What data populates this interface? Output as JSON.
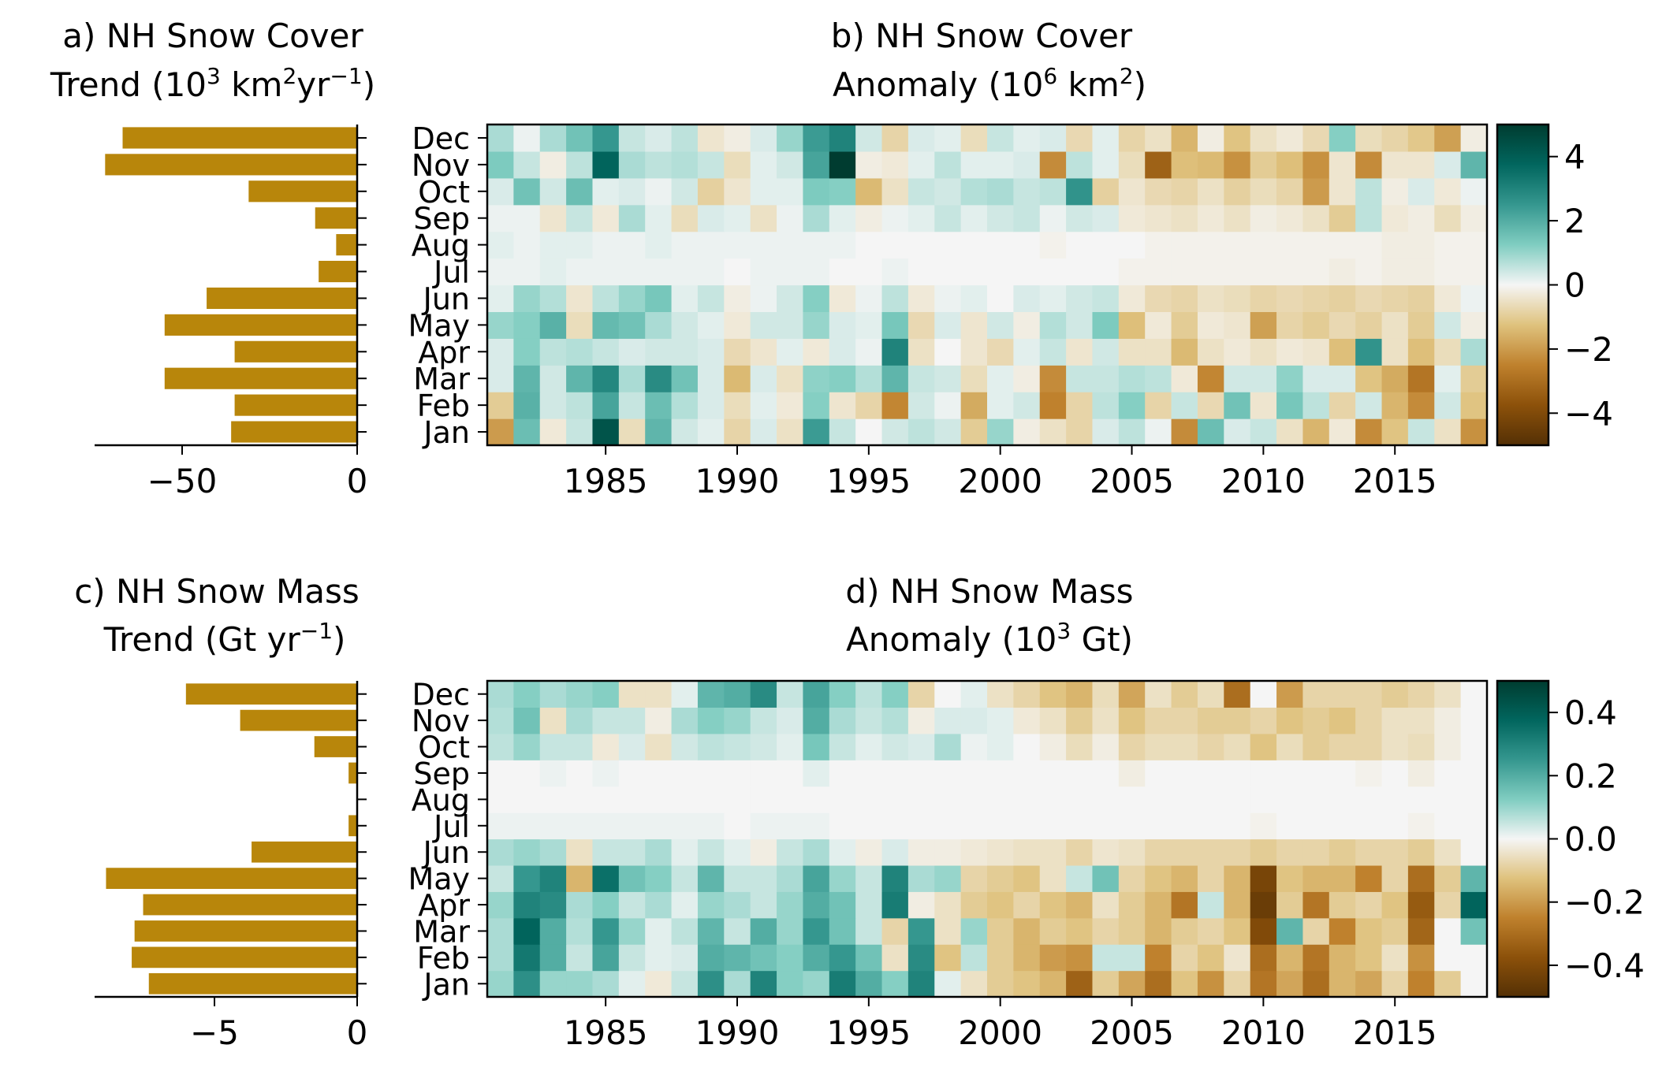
{
  "figure": {
    "panels": [
      {
        "id": "a",
        "title_line1": "a) NH Snow Cover",
        "title_line2": "Trend (10",
        "title_sup1": "3",
        "title_mid": " km",
        "title_sup2": "2",
        "title_mid2": "yr",
        "title_sup3": "−1",
        "title_end": ")"
      },
      {
        "id": "b",
        "title_line1": "b) NH Snow Cover",
        "title_line2": "Anomaly (10",
        "title_sup1": "6",
        "title_mid": " km",
        "title_sup2": "2",
        "title_end": ")"
      },
      {
        "id": "c",
        "title_line1": "c) NH Snow Mass",
        "title_line2": "Trend (Gt yr",
        "title_sup1": "−1",
        "title_end": ")"
      },
      {
        "id": "d",
        "title_line1": "d) NH Snow Mass",
        "title_line2": "Anomaly (10",
        "title_sup1": "3",
        "title_mid": " Gt",
        "title_end": ")"
      }
    ]
  },
  "chart_data": [
    {
      "panel": "a",
      "type": "bar",
      "orientation": "horizontal",
      "categories": [
        "Jan",
        "Feb",
        "Mar",
        "Apr",
        "May",
        "Jun",
        "Jul",
        "Aug",
        "Sep",
        "Oct",
        "Nov",
        "Dec"
      ],
      "values": [
        -36,
        -35,
        -55,
        -35,
        -55,
        -43,
        -11,
        -6,
        -12,
        -31,
        -72,
        -67
      ],
      "xlim": [
        -75,
        0
      ],
      "xticks": [
        -50,
        0
      ],
      "xtick_labels": [
        "−50",
        "0"
      ],
      "color": "#b8860b"
    },
    {
      "panel": "b",
      "type": "heatmap",
      "x_start": 1981,
      "x_end": 2018,
      "xticks": [
        1985,
        1990,
        1995,
        2000,
        2005,
        2010,
        2015
      ],
      "rows": [
        "Jan",
        "Feb",
        "Mar",
        "Apr",
        "May",
        "Jun",
        "Jul",
        "Aug",
        "Sep",
        "Oct",
        "Nov",
        "Dec"
      ],
      "vmin": -5,
      "vmax": 5,
      "colorbar_ticks": [
        4,
        2,
        0,
        -2,
        -4
      ],
      "colorbar_labels": [
        "4",
        "2",
        "0",
        "−2",
        "−4"
      ],
      "values": [
        [
          -2,
          1.6,
          -0.3,
          0.5,
          4.3,
          -0.6,
          1.8,
          0.4,
          0.2,
          -0.8,
          0.3,
          -0.5,
          2.4,
          0.5,
          0,
          0.4,
          0.6,
          0.4,
          -1,
          1,
          -0.2,
          -0.5,
          -0.8,
          0.3,
          0.6,
          0.1,
          -2.3,
          1.6,
          0.3,
          0.5,
          -0.5,
          -1.5,
          -0.3,
          -2.3,
          -1.2,
          0.5,
          -0.5,
          -2.2
        ],
        [
          -1,
          1.9,
          0.4,
          0.6,
          2.2,
          0.5,
          1.6,
          0.7,
          0.3,
          -0.6,
          0.2,
          -0.3,
          1.2,
          -0.4,
          -0.8,
          -2.4,
          0.4,
          0.1,
          -1.7,
          0.2,
          0.4,
          -2.5,
          -0.8,
          0.6,
          1.2,
          -0.8,
          0.5,
          -0.7,
          1.5,
          -0.4,
          1.4,
          0.6,
          -0.8,
          0.4,
          -1.5,
          -2.3,
          0.4,
          -1.2
        ],
        [
          0.3,
          1.8,
          0.4,
          1.8,
          2.9,
          0.8,
          2.8,
          1.5,
          0.3,
          -1.4,
          0.3,
          -0.5,
          1.1,
          1.2,
          0.7,
          1.8,
          0.5,
          0.4,
          -0.6,
          0.2,
          -0.2,
          -2.3,
          0.5,
          0.5,
          0.7,
          0.6,
          -0.3,
          -2.4,
          0.4,
          0.4,
          1.1,
          0.3,
          0.3,
          -1.2,
          -1.7,
          -2.8,
          0.2,
          -1.0
        ],
        [
          0.3,
          1.2,
          0.6,
          0.7,
          0.5,
          0.3,
          0.4,
          0.4,
          0.3,
          -0.7,
          -0.4,
          0.2,
          -0.3,
          0.3,
          0.1,
          3.0,
          -0.5,
          0,
          -0.4,
          -0.7,
          0.2,
          0.5,
          -0.4,
          0.4,
          -0.5,
          -0.5,
          -1.4,
          -0.5,
          -0.3,
          -0.5,
          -0.3,
          -0.4,
          -1.3,
          2.6,
          -0.5,
          -1.3,
          -0.6,
          0.8
        ],
        [
          1,
          1.2,
          1.9,
          -0.6,
          1.7,
          1.5,
          0.8,
          0.4,
          0.2,
          -0.3,
          0.4,
          0.4,
          1.0,
          0.3,
          0.2,
          1.4,
          -0.7,
          0.3,
          -0.4,
          0.4,
          -0.2,
          0.7,
          0.4,
          1.3,
          -1.3,
          -0.3,
          -1.0,
          -0.3,
          -0.4,
          -1.9,
          -0.8,
          -1.0,
          -0.7,
          -0.9,
          -0.5,
          -1.0,
          0.4,
          -0.2
        ],
        [
          0.2,
          1.0,
          0.7,
          -0.4,
          0.6,
          1.0,
          1.4,
          0.2,
          0.5,
          -0.2,
          0.1,
          0.4,
          1.2,
          -0.3,
          0.1,
          0.6,
          -0.3,
          0.1,
          0.2,
          0,
          0.3,
          0.2,
          0.4,
          0.5,
          -0.3,
          -0.7,
          -0.8,
          -0.5,
          -0.6,
          -0.8,
          -0.7,
          -0.8,
          -0.9,
          -0.7,
          -0.8,
          -0.9,
          -0.3,
          0.1
        ],
        [
          0.1,
          0.1,
          0.2,
          0.1,
          0.1,
          0.1,
          0.1,
          0.1,
          0.1,
          0,
          0.1,
          0.1,
          0.1,
          0,
          0,
          0.1,
          0,
          0,
          0,
          0,
          0,
          0,
          0,
          0,
          -0.1,
          -0.1,
          -0.1,
          -0.1,
          -0.1,
          -0.1,
          -0.1,
          -0.1,
          -0.2,
          -0.1,
          -0.2,
          -0.2,
          -0.1,
          -0.1
        ],
        [
          0.2,
          0.1,
          0.2,
          0.2,
          0.1,
          0.1,
          0.2,
          0.1,
          0.1,
          0.1,
          0.1,
          0.1,
          0.1,
          0.1,
          0,
          0,
          0,
          0,
          0,
          0,
          0,
          -0.1,
          0,
          0,
          0,
          -0.1,
          -0.1,
          -0.1,
          -0.1,
          -0.1,
          -0.1,
          -0.1,
          -0.1,
          -0.1,
          -0.2,
          -0.2,
          -0.1,
          -0.1
        ],
        [
          0.1,
          0.1,
          -0.4,
          0.5,
          -0.3,
          0.8,
          0.2,
          -0.6,
          0.3,
          0.2,
          -0.5,
          0.1,
          0.8,
          0.2,
          -0.2,
          0.1,
          0.2,
          0.5,
          0.2,
          0.4,
          0.5,
          0.1,
          0.4,
          0.3,
          -0.3,
          -0.4,
          -0.5,
          -0.3,
          -0.5,
          -0.2,
          -0.3,
          -0.5,
          -1.0,
          0.6,
          -0.3,
          -0.2,
          -0.6,
          -0.2
        ],
        [
          0.3,
          1.5,
          0.4,
          1.6,
          0.2,
          0.3,
          0.1,
          0.4,
          -0.9,
          -0.4,
          0.2,
          0.2,
          1.3,
          1.2,
          -1.4,
          -0.5,
          0.5,
          0.4,
          0.7,
          0.8,
          0.5,
          0.6,
          2.6,
          -0.9,
          -0.4,
          -0.7,
          -0.8,
          -0.5,
          -0.9,
          -0.6,
          -0.8,
          -2.0,
          -0.4,
          0.6,
          -0.2,
          0.3,
          -0.3,
          0.1
        ],
        [
          1.3,
          0.5,
          -0.2,
          0.6,
          3.8,
          0.8,
          0.6,
          0.7,
          0.5,
          -0.6,
          0.2,
          0.4,
          2.2,
          5.0,
          -0.2,
          -0.3,
          0.2,
          0.6,
          0.2,
          0.2,
          0.3,
          -2.3,
          0.6,
          0.2,
          -0.6,
          -3.3,
          -1.3,
          -1.4,
          -2.2,
          -1.0,
          -1.3,
          -2.2,
          -0.4,
          -2.3,
          -0.4,
          -0.4,
          0.3,
          1.8
        ],
        [
          0.8,
          0.1,
          0.8,
          1.5,
          2.5,
          0.5,
          0.3,
          0.6,
          -0.4,
          -0.2,
          0.3,
          1.0,
          2.4,
          3.0,
          0.4,
          -0.8,
          0.3,
          0.2,
          -0.6,
          0.5,
          0.2,
          0.3,
          -0.7,
          0.2,
          -0.8,
          -0.5,
          -1.5,
          -0.2,
          -1.2,
          -0.5,
          -0.3,
          -0.7,
          1.2,
          -0.6,
          -0.8,
          -1.1,
          -1.9,
          -0.2
        ]
      ]
    },
    {
      "panel": "c",
      "type": "bar",
      "orientation": "horizontal",
      "categories": [
        "Jan",
        "Feb",
        "Mar",
        "Apr",
        "May",
        "Jun",
        "Jul",
        "Aug",
        "Sep",
        "Oct",
        "Nov",
        "Dec"
      ],
      "values": [
        -7.3,
        -7.9,
        -7.8,
        -7.5,
        -8.8,
        -3.7,
        -0.3,
        0,
        -0.3,
        -1.5,
        -4.1,
        -6.0
      ],
      "xlim": [
        -9.2,
        0
      ],
      "xticks": [
        -5,
        0
      ],
      "xtick_labels": [
        "−5",
        "0"
      ],
      "color": "#b8860b"
    },
    {
      "panel": "d",
      "type": "heatmap",
      "x_start": 1981,
      "x_end": 2018,
      "xticks": [
        1985,
        1990,
        1995,
        2000,
        2005,
        2010,
        2015
      ],
      "rows": [
        "Jan",
        "Feb",
        "Mar",
        "Apr",
        "May",
        "Jun",
        "Jul",
        "Aug",
        "Sep",
        "Oct",
        "Nov",
        "Dec"
      ],
      "vmin": -0.5,
      "vmax": 0.5,
      "colorbar_ticks": [
        0.4,
        0.2,
        0.0,
        -0.2,
        -0.4
      ],
      "colorbar_labels": [
        "0.4",
        "0.2",
        "0.0",
        "−0.2",
        "−0.4"
      ],
      "values": [
        [
          0.1,
          0.27,
          0.1,
          0.1,
          0.08,
          0.02,
          -0.03,
          0.05,
          0.27,
          0.08,
          0.3,
          0.12,
          0.1,
          0.32,
          0.2,
          0.12,
          0.3,
          0.02,
          -0.05,
          -0.1,
          -0.12,
          -0.15,
          -0.33,
          -0.1,
          -0.18,
          -0.3,
          -0.12,
          -0.22,
          -0.08,
          -0.28,
          -0.18,
          -0.3,
          -0.15,
          -0.18,
          -0.08,
          -0.25,
          -0.1,
          0.0
        ],
        [
          0.08,
          0.33,
          0.2,
          0.05,
          0.22,
          0.05,
          0.02,
          0.03,
          0.2,
          0.18,
          0.15,
          0.12,
          0.2,
          0.25,
          0.15,
          -0.05,
          0.28,
          -0.12,
          0.06,
          -0.1,
          -0.15,
          -0.2,
          -0.22,
          0.05,
          0.05,
          -0.25,
          -0.08,
          -0.12,
          -0.04,
          -0.3,
          -0.15,
          -0.28,
          -0.15,
          -0.12,
          -0.05,
          -0.22,
          0.0,
          0.0
        ],
        [
          0.08,
          0.38,
          0.2,
          0.07,
          0.25,
          0.1,
          0.02,
          0.06,
          0.18,
          0.05,
          0.2,
          0.1,
          0.25,
          0.15,
          0.05,
          -0.08,
          0.25,
          -0.05,
          0.1,
          -0.1,
          -0.15,
          -0.1,
          -0.12,
          -0.08,
          -0.1,
          -0.15,
          -0.1,
          -0.08,
          -0.12,
          -0.4,
          0.18,
          -0.08,
          -0.25,
          -0.12,
          -0.1,
          -0.32,
          0.0,
          0.15
        ],
        [
          0.1,
          0.3,
          0.28,
          0.08,
          0.12,
          0.05,
          0.08,
          0.02,
          0.1,
          0.08,
          0.05,
          0.1,
          0.2,
          0.15,
          0.05,
          0.32,
          -0.02,
          -0.05,
          -0.1,
          -0.12,
          -0.08,
          -0.12,
          -0.15,
          -0.05,
          -0.1,
          -0.15,
          -0.28,
          0.05,
          -0.15,
          -0.45,
          -0.1,
          -0.28,
          -0.1,
          -0.08,
          -0.12,
          -0.35,
          -0.08,
          0.38
        ],
        [
          0.05,
          0.25,
          0.3,
          -0.15,
          0.35,
          0.15,
          0.12,
          0.05,
          0.18,
          0.05,
          0.05,
          0.08,
          0.22,
          0.1,
          0.05,
          0.3,
          0.08,
          0.1,
          -0.08,
          -0.1,
          -0.12,
          -0.05,
          0.05,
          0.15,
          -0.08,
          -0.12,
          -0.15,
          -0.08,
          -0.15,
          -0.42,
          -0.12,
          -0.15,
          -0.15,
          -0.25,
          -0.08,
          -0.3,
          -0.1,
          0.18
        ],
        [
          0.08,
          0.1,
          0.08,
          -0.05,
          0.05,
          0.05,
          0.08,
          0.02,
          0.05,
          0.02,
          -0.02,
          0.05,
          0.08,
          0.02,
          -0.02,
          0.03,
          -0.02,
          -0.02,
          -0.03,
          -0.04,
          -0.05,
          -0.05,
          -0.08,
          -0.04,
          -0.05,
          -0.08,
          -0.08,
          -0.08,
          -0.08,
          -0.1,
          -0.08,
          -0.08,
          -0.1,
          -0.08,
          -0.08,
          -0.1,
          -0.05,
          0.0
        ],
        [
          0.01,
          0.01,
          0.01,
          0.01,
          0.01,
          0.01,
          0.01,
          0.01,
          0.01,
          0,
          0.01,
          0.01,
          0.01,
          0,
          0,
          0,
          0,
          0,
          0,
          0,
          0,
          0,
          0,
          0,
          0,
          0,
          0,
          0,
          0,
          -0.01,
          0,
          0,
          0,
          0,
          0,
          -0.01,
          0,
          0.0
        ],
        [
          0,
          0,
          0,
          0,
          0,
          0,
          0,
          0,
          0,
          0,
          0,
          0,
          0,
          0,
          0,
          0,
          0,
          0,
          0,
          0,
          0,
          0,
          0,
          0,
          0,
          0,
          0,
          0,
          0,
          0,
          0,
          0,
          0,
          0,
          0,
          0,
          0,
          0.0
        ],
        [
          0,
          0,
          0.01,
          0,
          0.01,
          0,
          0,
          0,
          0,
          0,
          0,
          0,
          0.02,
          0,
          0,
          0,
          0,
          0,
          0,
          0,
          0,
          0,
          0,
          0,
          -0.02,
          0,
          0,
          0,
          0,
          0,
          0,
          0,
          0,
          -0.01,
          0,
          -0.02,
          0,
          0.0
        ],
        [
          0.06,
          0.1,
          0.05,
          0.05,
          -0.03,
          0.03,
          -0.05,
          0.04,
          0.06,
          0.05,
          0.04,
          0.02,
          0.14,
          0.05,
          0.02,
          0.04,
          0.03,
          0.08,
          0.01,
          0.02,
          0.0,
          -0.02,
          -0.06,
          -0.02,
          -0.08,
          -0.06,
          -0.06,
          -0.08,
          -0.06,
          -0.12,
          -0.06,
          -0.1,
          -0.08,
          -0.08,
          -0.05,
          -0.06,
          -0.02,
          0.0
        ],
        [
          0.07,
          0.15,
          -0.05,
          0.08,
          0.05,
          0.05,
          -0.02,
          0.08,
          0.12,
          0.1,
          0.05,
          0.03,
          0.2,
          0.08,
          0.05,
          0.07,
          -0.02,
          0.03,
          0.03,
          0.02,
          -0.03,
          -0.05,
          -0.1,
          -0.05,
          -0.12,
          -0.08,
          -0.08,
          -0.1,
          -0.1,
          -0.08,
          -0.12,
          -0.1,
          -0.12,
          -0.08,
          -0.05,
          -0.05,
          -0.02,
          0.0
        ],
        [
          0.08,
          0.12,
          0.08,
          0.1,
          0.12,
          -0.05,
          -0.05,
          0.02,
          0.18,
          0.2,
          0.28,
          0.05,
          0.22,
          0.12,
          0.06,
          0.12,
          -0.08,
          0.0,
          0.02,
          -0.05,
          -0.08,
          -0.12,
          -0.15,
          -0.06,
          -0.18,
          -0.05,
          -0.1,
          -0.06,
          -0.3,
          0.0,
          -0.2,
          -0.08,
          -0.08,
          -0.08,
          -0.1,
          -0.08,
          -0.05,
          0.0
        ]
      ]
    }
  ]
}
